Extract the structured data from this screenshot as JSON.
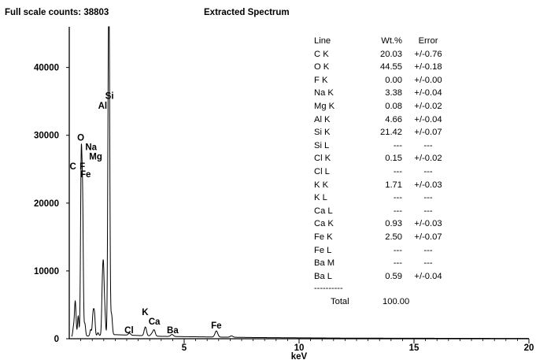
{
  "header": {
    "full_scale": "Full scale counts: 38803",
    "title": "Extracted Spectrum"
  },
  "table": {
    "headers": [
      "Line",
      "Wt.%",
      "Error"
    ],
    "rows": [
      [
        "C K",
        "20.03",
        "+/-0.76"
      ],
      [
        "O K",
        "44.55",
        "+/-0.18"
      ],
      [
        "F K",
        "0.00",
        "+/-0.00"
      ],
      [
        "Na K",
        "3.38",
        "+/-0.04"
      ],
      [
        "Mg K",
        "0.08",
        "+/-0.02"
      ],
      [
        "Al K",
        "4.66",
        "+/-0.04"
      ],
      [
        "Si K",
        "21.42",
        "+/-0.07"
      ],
      [
        "Si L",
        "---",
        "---"
      ],
      [
        "Cl K",
        "0.15",
        "+/-0.02"
      ],
      [
        "Cl L",
        "---",
        "---"
      ],
      [
        "K K",
        "1.71",
        "+/-0.03"
      ],
      [
        "K L",
        "---",
        "---"
      ],
      [
        "Ca L",
        "---",
        "---"
      ],
      [
        "Ca K",
        "0.93",
        "+/-0.03"
      ],
      [
        "Fe K",
        "2.50",
        "+/-0.07"
      ],
      [
        "Fe L",
        "---",
        "---"
      ],
      [
        "Ba M",
        "---",
        "---"
      ],
      [
        "Ba L",
        "0.59",
        "+/-0.04"
      ]
    ],
    "separator": "----------",
    "total_label": "Total",
    "total_value": "100.00"
  },
  "chart_data": {
    "type": "line",
    "xlabel": "keV",
    "ylabel": "",
    "xlim": [
      0,
      20
    ],
    "ylim": [
      0,
      46000
    ],
    "x_ticks": [
      5,
      10,
      15,
      20
    ],
    "x_tick_labels": [
      "5",
      "10",
      "15",
      "20"
    ],
    "y_ticks": [
      0,
      10000,
      20000,
      30000,
      40000
    ],
    "y_tick_labels": [
      "0",
      "10000",
      "20000",
      "30000",
      "40000"
    ],
    "grid": false,
    "series": [
      {
        "peaks": [
          {
            "x": 0.18,
            "y": 1200,
            "w": 0.03
          },
          {
            "x": 0.26,
            "y": 5200,
            "w": 0.035
          },
          {
            "x": 0.39,
            "y": 3000,
            "w": 0.03
          },
          {
            "x": 0.52,
            "y": 25000,
            "w": 0.03
          },
          {
            "x": 0.58,
            "y": 19000,
            "w": 0.03
          },
          {
            "x": 0.68,
            "y": 1800,
            "w": 0.03
          },
          {
            "x": 0.93,
            "y": 900,
            "w": 0.03
          },
          {
            "x": 1.04,
            "y": 3400,
            "w": 0.035
          },
          {
            "x": 1.1,
            "y": 2700,
            "w": 0.03
          },
          {
            "x": 1.25,
            "y": 400,
            "w": 0.03
          },
          {
            "x": 1.44,
            "y": 6500,
            "w": 0.03
          },
          {
            "x": 1.49,
            "y": 8700,
            "w": 0.03
          },
          {
            "x": 1.55,
            "y": 3200,
            "w": 0.03
          },
          {
            "x": 1.7,
            "y": 29500,
            "w": 0.03
          },
          {
            "x": 1.74,
            "y": 34000,
            "w": 0.03
          },
          {
            "x": 1.84,
            "y": 3000,
            "w": 0.035
          },
          {
            "x": 2.62,
            "y": 300,
            "w": 0.05
          },
          {
            "x": 3.31,
            "y": 1300,
            "w": 0.05
          },
          {
            "x": 3.59,
            "y": 300,
            "w": 0.05
          },
          {
            "x": 3.69,
            "y": 900,
            "w": 0.05
          },
          {
            "x": 4.47,
            "y": 300,
            "w": 0.06
          },
          {
            "x": 6.4,
            "y": 900,
            "w": 0.06
          },
          {
            "x": 7.06,
            "y": 200,
            "w": 0.06
          }
        ],
        "background": [
          {
            "x": 0.1,
            "y": 300
          },
          {
            "x": 2.0,
            "y": 600
          },
          {
            "x": 4.0,
            "y": 350
          },
          {
            "x": 8.0,
            "y": 180
          },
          {
            "x": 12.0,
            "y": 90
          },
          {
            "x": 20.0,
            "y": 40
          }
        ]
      }
    ],
    "peak_labels": [
      {
        "text": "Si",
        "x": 1.75,
        "y": 35400
      },
      {
        "text": "Al",
        "x": 1.45,
        "y": 33900
      },
      {
        "text": "O",
        "x": 0.5,
        "y": 29200
      },
      {
        "text": "Na",
        "x": 0.95,
        "y": 27800
      },
      {
        "text": "Mg",
        "x": 1.15,
        "y": 26400
      },
      {
        "text": "C",
        "x": 0.16,
        "y": 25000
      },
      {
        "text": "F",
        "x": 0.57,
        "y": 25000
      },
      {
        "text": "Fe",
        "x": 0.71,
        "y": 23800
      },
      {
        "text": "K",
        "x": 3.3,
        "y": 3500
      },
      {
        "text": "Ca",
        "x": 3.7,
        "y": 2100
      },
      {
        "text": "Cl",
        "x": 2.6,
        "y": 800
      },
      {
        "text": "Ba",
        "x": 4.5,
        "y": 800
      },
      {
        "text": "Fe",
        "x": 6.4,
        "y": 1500
      }
    ]
  }
}
